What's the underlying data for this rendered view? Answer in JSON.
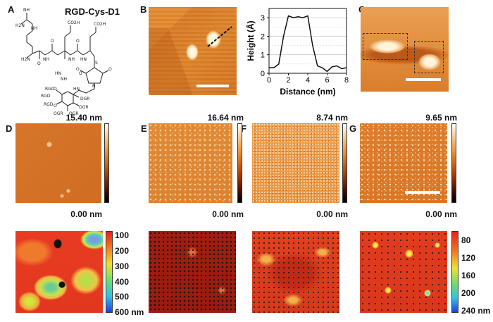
{
  "figure": {
    "panel_labels": [
      "A",
      "B",
      "C",
      "D",
      "E",
      "F",
      "G"
    ],
    "panel_a": {
      "title": "RGD-Cys-D1",
      "atoms": [
        "NH",
        "H2N",
        "NH",
        "H2N",
        "O",
        "NH",
        "NH",
        "CO2H",
        "HN",
        "CO2H",
        "O",
        "S",
        "O",
        "N",
        "O",
        "O",
        "HN",
        "RGD",
        "DGR",
        "RGD",
        "RGD",
        "OGR",
        "OGR",
        "OGR",
        "O",
        "O",
        "HN",
        "O",
        "NH"
      ]
    },
    "panel_d": {
      "max": "15.40 nm",
      "min": "0.00 nm"
    },
    "panel_e": {
      "max": "16.64 nm",
      "min": "0.00 nm"
    },
    "panel_f": {
      "max": "8.74 nm",
      "min": "0.00 nm"
    },
    "panel_g": {
      "max": "9.65 nm",
      "min": "0.00 nm"
    },
    "contour_left_scale": [
      "100",
      "200",
      "300",
      "400",
      "500",
      "600 nm"
    ],
    "contour_right_scale": [
      "80",
      "120",
      "160",
      "200",
      "240 nm"
    ]
  },
  "chart_data": {
    "type": "line",
    "xlabel": "Distance (nm)",
    "ylabel": "Height (Å)",
    "xlim": [
      0,
      8
    ],
    "ylim": [
      0,
      3.5
    ],
    "xticks": [
      "0",
      "2",
      "4",
      "6",
      "8"
    ],
    "yticks": [
      "0",
      "1",
      "2",
      "3"
    ],
    "grid": true,
    "x": [
      0,
      0.5,
      1.0,
      1.5,
      2.0,
      2.5,
      3.0,
      3.5,
      4.0,
      4.5,
      5.0,
      5.5,
      6.0,
      6.5,
      7.0,
      7.5,
      8.0
    ],
    "y": [
      0.3,
      0.3,
      0.5,
      2.0,
      3.1,
      3.0,
      3.05,
      3.0,
      3.1,
      1.5,
      0.4,
      0.3,
      0.1,
      0.35,
      0.4,
      0.25,
      0.3
    ]
  }
}
